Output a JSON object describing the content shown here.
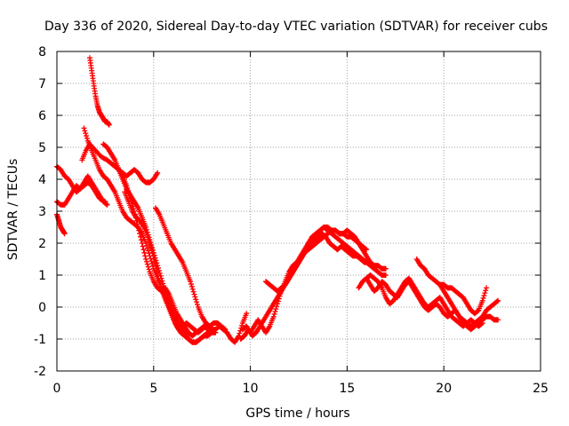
{
  "chart_data": {
    "type": "scatter",
    "title": "Day 336 of 2020, Sidereal Day-to-day VTEC variation (SDTVAR) for receiver cubs",
    "xlabel": "GPS time / hours",
    "ylabel": "SDTVAR / TECUs",
    "xlim": [
      0,
      25
    ],
    "ylim": [
      -2,
      8
    ],
    "xticks": [
      0,
      5,
      10,
      15,
      20,
      25
    ],
    "yticks": [
      -2,
      -1,
      0,
      1,
      2,
      3,
      4,
      5,
      6,
      7,
      8
    ],
    "grid": true,
    "marker": "+",
    "color": "#ff0000",
    "series": [
      {
        "name": "s1",
        "x": [
          0.0,
          0.1,
          0.2,
          0.3,
          0.4
        ],
        "y": [
          2.9,
          2.7,
          2.5,
          2.4,
          2.3
        ]
      },
      {
        "name": "s2",
        "x": [
          0.0,
          0.2,
          0.4,
          0.6,
          0.8,
          1.0,
          1.2,
          1.4,
          1.6,
          1.8,
          2.0,
          2.2,
          2.5
        ],
        "y": [
          4.4,
          4.3,
          4.1,
          4.0,
          3.8,
          3.6,
          3.7,
          3.8,
          3.9,
          3.8,
          3.6,
          3.4,
          3.3
        ]
      },
      {
        "name": "s3",
        "x": [
          0.0,
          0.2,
          0.4,
          0.6,
          0.8,
          1.0,
          1.2,
          1.4,
          1.6,
          1.8,
          2.0,
          2.2,
          2.4,
          2.6
        ],
        "y": [
          3.3,
          3.2,
          3.2,
          3.4,
          3.6,
          3.8,
          3.7,
          3.9,
          4.1,
          3.9,
          3.7,
          3.5,
          3.3,
          3.2
        ]
      },
      {
        "name": "s4",
        "x": [
          1.3,
          1.5,
          1.7,
          2.0,
          2.3,
          2.6,
          2.8,
          3.0,
          3.2,
          3.4,
          3.6,
          3.8,
          4.0,
          4.2,
          4.4,
          4.6,
          4.8,
          5.0,
          5.2,
          5.4,
          5.6,
          5.8,
          6.0,
          6.2,
          6.4,
          6.6,
          6.8,
          7.0,
          7.2,
          7.4,
          7.6,
          7.8,
          8.0
        ],
        "y": [
          4.6,
          4.9,
          5.1,
          4.9,
          4.7,
          4.6,
          4.5,
          4.4,
          4.3,
          4.1,
          3.8,
          3.4,
          3.0,
          2.5,
          2.0,
          1.5,
          1.1,
          0.8,
          0.6,
          0.5,
          0.6,
          0.4,
          0.1,
          -0.2,
          -0.4,
          -0.6,
          -0.8,
          -0.9,
          -0.8,
          -0.7,
          -0.6,
          -0.7,
          -0.8
        ]
      },
      {
        "name": "s5",
        "x": [
          1.4,
          1.6,
          1.8,
          2.0,
          2.2,
          2.4,
          2.6,
          2.8,
          3.0,
          3.2,
          3.4,
          3.6,
          3.8,
          4.0,
          4.2,
          4.4,
          4.6,
          4.8,
          5.0,
          5.2,
          5.4,
          5.6,
          5.8,
          6.0,
          6.2,
          6.4,
          6.6,
          6.8,
          7.0,
          7.2,
          7.4,
          7.6,
          7.8,
          8.0,
          8.2
        ],
        "y": [
          5.6,
          5.2,
          4.9,
          4.6,
          4.3,
          4.1,
          4.0,
          3.8,
          3.6,
          3.3,
          3.0,
          2.8,
          2.7,
          2.6,
          2.5,
          2.3,
          2.0,
          1.6,
          1.2,
          0.9,
          0.6,
          0.3,
          0.0,
          -0.3,
          -0.6,
          -0.8,
          -0.9,
          -1.0,
          -1.1,
          -1.1,
          -1.0,
          -0.9,
          -0.9,
          -0.8,
          -0.8
        ]
      },
      {
        "name": "s6",
        "x": [
          1.7,
          1.8,
          1.9,
          2.0,
          2.1,
          2.2,
          2.3,
          2.4,
          2.5,
          2.6,
          2.7
        ],
        "y": [
          7.8,
          7.4,
          7.0,
          6.6,
          6.3,
          6.1,
          6.0,
          5.9,
          5.8,
          5.8,
          5.7
        ]
      },
      {
        "name": "s7",
        "x": [
          2.4,
          2.6,
          2.8,
          3.0,
          3.2,
          3.4,
          3.6,
          3.8,
          4.0,
          4.2,
          4.4,
          4.6,
          4.8,
          5.0,
          5.2,
          5.4,
          5.6,
          5.8,
          6.0,
          6.2,
          6.4,
          6.6,
          6.8,
          7.0,
          7.2,
          7.4,
          7.6,
          7.8,
          8.0,
          8.2,
          8.4,
          8.6,
          8.8,
          9.0,
          9.2,
          9.4,
          9.6,
          9.8
        ],
        "y": [
          5.1,
          5.0,
          4.8,
          4.6,
          4.3,
          4.0,
          3.7,
          3.5,
          3.3,
          3.1,
          2.8,
          2.5,
          2.1,
          1.7,
          1.3,
          0.9,
          0.5,
          0.2,
          -0.1,
          -0.4,
          -0.6,
          -0.8,
          -1.0,
          -1.1,
          -1.1,
          -1.0,
          -0.9,
          -0.8,
          -0.7,
          -0.7,
          -0.6,
          -0.7,
          -0.8,
          -1.0,
          -1.1,
          -0.9,
          -0.5,
          -0.2
        ]
      },
      {
        "name": "s8",
        "x": [
          3.2,
          3.4,
          3.6,
          3.8,
          4.0,
          4.2,
          4.4,
          4.6,
          4.8,
          5.0,
          5.2
        ],
        "y": [
          4.3,
          4.2,
          4.1,
          4.2,
          4.3,
          4.2,
          4.0,
          3.9,
          3.9,
          4.0,
          4.2
        ]
      },
      {
        "name": "s9",
        "x": [
          3.5,
          3.7,
          3.9,
          4.1,
          4.3,
          4.5,
          4.7,
          4.9,
          5.1,
          5.3,
          5.5,
          5.7,
          5.9,
          6.1,
          6.3,
          6.5,
          6.7,
          6.9,
          7.1,
          7.3,
          7.5,
          7.7
        ],
        "y": [
          3.6,
          3.3,
          3.0,
          2.8,
          2.7,
          2.5,
          2.2,
          1.8,
          1.3,
          0.8,
          0.4,
          0.1,
          -0.2,
          -0.5,
          -0.7,
          -0.6,
          -0.5,
          -0.6,
          -0.7,
          -0.8,
          -0.7,
          -0.6
        ]
      },
      {
        "name": "s10",
        "x": [
          5.1,
          5.3,
          5.5,
          5.7,
          5.9,
          6.1,
          6.3,
          6.5,
          6.7,
          6.9,
          7.1,
          7.3,
          7.5,
          7.7,
          7.9,
          8.1,
          8.3,
          8.5,
          8.7
        ],
        "y": [
          3.1,
          2.9,
          2.6,
          2.3,
          2.0,
          1.8,
          1.6,
          1.4,
          1.1,
          0.8,
          0.4,
          0.0,
          -0.3,
          -0.5,
          -0.6,
          -0.5,
          -0.5,
          -0.6,
          -0.7
        ]
      },
      {
        "name": "s11",
        "x": [
          9.5,
          9.7,
          9.9,
          10.1,
          10.3,
          10.5,
          10.7,
          10.9,
          11.1,
          11.3,
          11.5,
          11.7,
          11.9,
          12.1,
          12.3,
          12.5,
          12.7,
          12.9,
          13.1,
          13.3,
          13.5,
          13.7,
          13.9,
          14.1,
          14.3,
          14.5,
          14.7,
          14.9,
          15.1,
          15.3,
          15.5,
          15.7,
          15.9,
          16.1
        ],
        "y": [
          -1.0,
          -0.9,
          -0.7,
          -0.9,
          -0.8,
          -0.6,
          -0.4,
          -0.2,
          0.0,
          0.2,
          0.4,
          0.6,
          0.8,
          1.0,
          1.2,
          1.4,
          1.6,
          1.8,
          2.0,
          2.1,
          2.2,
          2.3,
          2.2,
          2.0,
          1.9,
          1.8,
          1.9,
          1.8,
          1.7,
          1.6,
          1.6,
          1.5,
          1.4,
          1.4
        ]
      },
      {
        "name": "s12",
        "x": [
          9.6,
          9.8,
          10.0,
          10.2,
          10.4,
          10.6,
          10.8,
          11.0,
          11.2,
          11.4,
          11.6,
          11.8,
          12.0,
          12.2,
          12.4,
          12.6,
          12.8,
          13.0,
          13.2,
          13.4,
          13.6,
          13.8,
          14.0,
          14.2,
          14.4,
          14.6,
          14.8,
          15.0,
          15.2,
          15.4,
          15.6,
          15.8,
          16.0,
          16.2,
          16.4,
          16.6,
          16.8,
          17.0
        ],
        "y": [
          -0.7,
          -0.6,
          -0.8,
          -0.6,
          -0.4,
          -0.6,
          -0.8,
          -0.6,
          -0.3,
          0.1,
          0.5,
          0.8,
          1.1,
          1.3,
          1.4,
          1.6,
          1.8,
          2.0,
          2.2,
          2.3,
          2.4,
          2.5,
          2.4,
          2.3,
          2.2,
          2.1,
          2.0,
          1.9,
          1.8,
          1.7,
          1.6,
          1.5,
          1.4,
          1.3,
          1.2,
          1.1,
          1.0,
          1.0
        ]
      },
      {
        "name": "s13",
        "x": [
          10.8,
          11.0,
          11.2,
          11.4,
          11.6,
          11.8,
          12.0,
          12.2,
          12.4,
          12.6,
          12.8,
          13.0,
          13.2,
          13.4,
          13.6,
          13.8,
          14.0,
          14.2,
          14.4,
          14.6,
          14.8,
          15.0,
          15.2,
          15.4,
          15.6,
          15.8,
          16.0
        ],
        "y": [
          0.8,
          0.7,
          0.6,
          0.5,
          0.6,
          0.7,
          0.9,
          1.1,
          1.3,
          1.5,
          1.7,
          1.8,
          1.9,
          2.0,
          2.1,
          2.2,
          2.3,
          2.4,
          2.4,
          2.3,
          2.3,
          2.2,
          2.2,
          2.1,
          2.0,
          1.9,
          1.8
        ]
      },
      {
        "name": "s14",
        "x": [
          13.0,
          13.2,
          13.4,
          13.6,
          13.8,
          14.0,
          14.2,
          14.4,
          14.6,
          14.8,
          15.0,
          15.2,
          15.4,
          15.6,
          15.8,
          16.0,
          16.2,
          16.4,
          16.6,
          16.8,
          17.0
        ],
        "y": [
          2.0,
          2.2,
          2.3,
          2.4,
          2.5,
          2.5,
          2.4,
          2.4,
          2.3,
          2.3,
          2.4,
          2.3,
          2.2,
          2.0,
          1.8,
          1.6,
          1.4,
          1.3,
          1.3,
          1.2,
          1.2
        ]
      },
      {
        "name": "s15",
        "x": [
          15.6,
          15.8,
          16.0,
          16.2,
          16.4,
          16.6,
          16.8,
          17.0,
          17.2,
          17.4,
          17.6,
          17.8,
          18.0,
          18.2,
          18.4,
          18.6,
          18.8,
          19.0,
          19.2,
          19.4,
          19.6,
          19.8,
          20.0,
          20.2,
          20.4,
          20.6,
          20.8,
          21.0,
          21.2,
          21.4,
          21.6,
          21.8,
          22.0
        ],
        "y": [
          0.6,
          0.8,
          0.9,
          1.0,
          0.9,
          0.8,
          0.6,
          0.3,
          0.1,
          0.2,
          0.4,
          0.6,
          0.8,
          0.9,
          0.7,
          0.5,
          0.3,
          0.1,
          0.0,
          0.1,
          0.2,
          0.3,
          0.1,
          -0.1,
          -0.3,
          -0.4,
          -0.5,
          -0.6,
          -0.5,
          -0.4,
          -0.5,
          -0.6,
          -0.5
        ]
      },
      {
        "name": "s16",
        "x": [
          16.0,
          16.2,
          16.4,
          16.6,
          16.8,
          17.0,
          17.2,
          17.4,
          17.6,
          17.8,
          18.0,
          18.2,
          18.4,
          18.6,
          18.8,
          19.0,
          19.2,
          19.4,
          19.6,
          19.8,
          20.0,
          20.2,
          20.4,
          20.6,
          20.8,
          21.0,
          21.2,
          21.4,
          21.6,
          21.8,
          22.0,
          22.2,
          22.4,
          22.6,
          22.8
        ],
        "y": [
          0.9,
          0.7,
          0.5,
          0.6,
          0.8,
          0.7,
          0.5,
          0.4,
          0.3,
          0.5,
          0.7,
          0.8,
          0.6,
          0.4,
          0.2,
          0.0,
          -0.1,
          0.0,
          0.1,
          0.0,
          -0.2,
          -0.3,
          -0.2,
          -0.1,
          -0.3,
          -0.5,
          -0.6,
          -0.7,
          -0.6,
          -0.5,
          -0.4,
          -0.3,
          -0.3,
          -0.4,
          -0.4
        ]
      },
      {
        "name": "s17",
        "x": [
          18.6,
          18.8,
          19.0,
          19.2,
          19.4,
          19.6,
          19.8,
          20.0,
          20.2,
          20.4,
          20.6,
          20.8,
          21.0,
          21.2,
          21.4,
          21.6,
          21.8,
          22.0,
          22.2
        ],
        "y": [
          1.5,
          1.3,
          1.2,
          1.0,
          0.9,
          0.8,
          0.7,
          0.7,
          0.6,
          0.6,
          0.5,
          0.4,
          0.3,
          0.1,
          -0.1,
          -0.2,
          -0.1,
          0.2,
          0.6
        ]
      },
      {
        "name": "s18",
        "x": [
          19.8,
          20.0,
          20.2,
          20.4,
          20.6,
          20.8,
          21.0,
          21.2,
          21.4,
          21.6,
          21.8,
          22.0,
          22.2,
          22.4,
          22.6,
          22.8
        ],
        "y": [
          0.7,
          0.5,
          0.3,
          0.1,
          -0.1,
          -0.3,
          -0.4,
          -0.5,
          -0.6,
          -0.5,
          -0.4,
          -0.3,
          -0.1,
          0.0,
          0.1,
          0.2
        ]
      }
    ]
  }
}
